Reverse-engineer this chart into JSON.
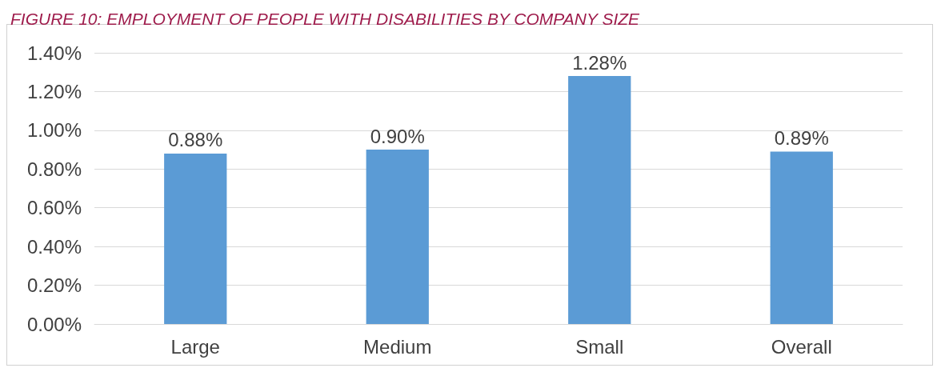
{
  "chart_data": {
    "type": "bar",
    "title": "FIGURE 10: EMPLOYMENT OF PEOPLE WITH DISABILITIES BY COMPANY SIZE",
    "categories": [
      "Large",
      "Medium",
      "Small",
      "Overall"
    ],
    "values": [
      0.88,
      0.9,
      1.28,
      0.89
    ],
    "value_labels": [
      "0.88%",
      "0.90%",
      "1.28%",
      "0.89%"
    ],
    "color": "#5b9bd5",
    "ylim": [
      0,
      1.4
    ],
    "yticks": [
      {
        "value": 0,
        "label": "0.00%"
      },
      {
        "value": 0.2,
        "label": "0.20%"
      },
      {
        "value": 0.4,
        "label": "0.40%"
      },
      {
        "value": 0.6,
        "label": "0.60%"
      },
      {
        "value": 0.8,
        "label": "0.80%"
      },
      {
        "value": 1.0,
        "label": "1.00%"
      },
      {
        "value": 1.2,
        "label": "1.20%"
      },
      {
        "value": 1.4,
        "label": "1.40%"
      }
    ],
    "grid": true
  }
}
